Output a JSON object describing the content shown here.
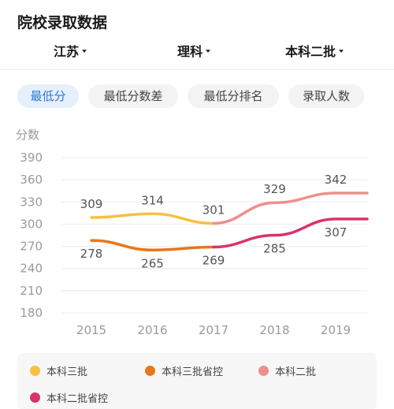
{
  "header": {
    "title": "院校录取数据"
  },
  "filters": [
    {
      "label": "江苏"
    },
    {
      "label": "理科"
    },
    {
      "label": "本科二批"
    }
  ],
  "tabs": [
    {
      "label": "最低分",
      "active": true
    },
    {
      "label": "最低分数差",
      "active": false
    },
    {
      "label": "最低分排名",
      "active": false
    },
    {
      "label": "录取人数",
      "active": false
    }
  ],
  "chart_data": {
    "type": "line",
    "ylabel": "分数",
    "ylim": [
      180,
      390
    ],
    "yticks": [
      180,
      210,
      240,
      270,
      300,
      330,
      360,
      390
    ],
    "categories": [
      "2015",
      "2016",
      "2017",
      "2018",
      "2019"
    ],
    "grid": true,
    "legend_position": "bottom",
    "series": [
      {
        "name": "本科三批",
        "color": "#f5c142",
        "x": [
          "2015",
          "2016",
          "2017"
        ],
        "values": [
          309,
          314,
          301
        ]
      },
      {
        "name": "本科三批省控",
        "color": "#e8761c",
        "x": [
          "2015",
          "2016",
          "2017"
        ],
        "values": [
          278,
          265,
          269
        ]
      },
      {
        "name": "本科二批",
        "color": "#ef8f8c",
        "x": [
          "2017",
          "2018",
          "2019"
        ],
        "values": [
          301,
          329,
          342
        ]
      },
      {
        "name": "本科二批省控",
        "color": "#d8336b",
        "x": [
          "2017",
          "2018",
          "2019"
        ],
        "values": [
          269,
          285,
          307
        ]
      }
    ]
  }
}
